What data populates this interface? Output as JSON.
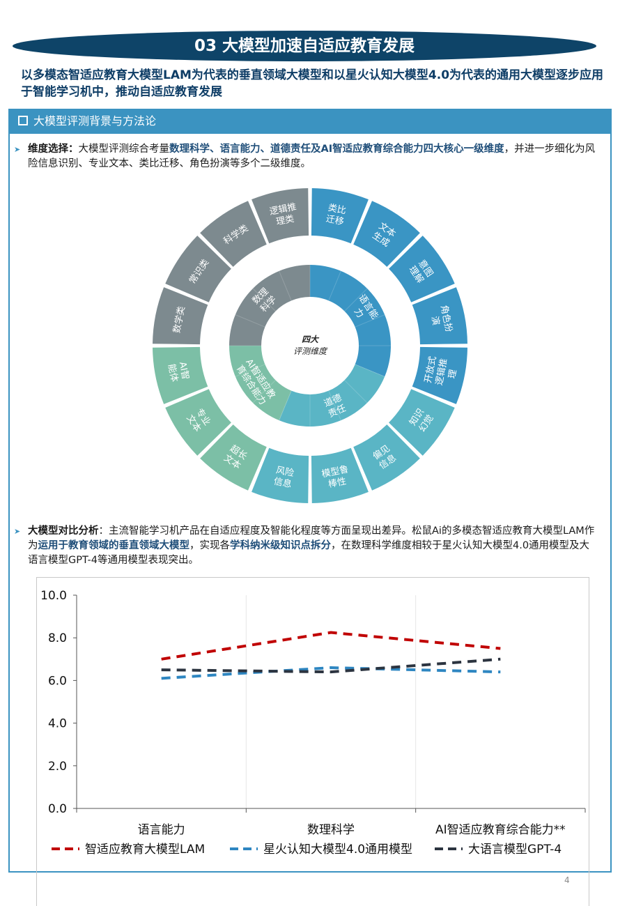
{
  "header": {
    "title": "03 大模型加速自适应教育发展",
    "intro": "以多模态智适应教育大模型LAM为代表的垂直领域大模型和以星火认知大模型4.0为代表的通用大模型逐步应用于智能学习机中，推动自适应教育发展"
  },
  "panel": {
    "title": "大模型评测背景与方法论"
  },
  "bullet1": {
    "lead": "维度选择：",
    "t1": "大模型评测综合考量",
    "h1": "数理科学、语言能力、道德责任及AI智适应教育综合能力四大核心一级维度",
    "t2": "，并进一步细化为风险信息识别、专业文本、类比迁移、角色扮演等多个二级维度。"
  },
  "donut": {
    "center_line1": "四大",
    "center_line2": "评测维度",
    "colors": {
      "blue": "#3a95c4",
      "teal": "#5ab5c5",
      "green": "#7cbfa6",
      "gray": "#7d8a8f"
    },
    "inner": [
      {
        "label": [
          "语言能",
          "力"
        ],
        "color": "blue"
      },
      {
        "label": [
          "道德",
          "责任"
        ],
        "color": "teal"
      },
      {
        "label": [
          "AI智适应教",
          "育综合能力"
        ],
        "color": "green"
      },
      {
        "label": [
          "数理",
          "科学"
        ],
        "color": "gray"
      }
    ],
    "outer": [
      {
        "label": [
          "类比",
          "迁移"
        ],
        "color": "blue"
      },
      {
        "label": [
          "文本",
          "生成"
        ],
        "color": "blue"
      },
      {
        "label": [
          "意图",
          "理解"
        ],
        "color": "blue"
      },
      {
        "label": [
          "角色扮",
          "演"
        ],
        "color": "blue"
      },
      {
        "label": [
          "开放式",
          "逻辑推",
          "理"
        ],
        "color": "blue"
      },
      {
        "label": [
          "知识",
          "幻觉"
        ],
        "color": "teal"
      },
      {
        "label": [
          "偏见",
          "信息"
        ],
        "color": "teal"
      },
      {
        "label": [
          "模型鲁",
          "棒性"
        ],
        "color": "teal"
      },
      {
        "label": [
          "风险",
          "信息"
        ],
        "color": "teal"
      },
      {
        "label": [
          "超长",
          "文本"
        ],
        "color": "green"
      },
      {
        "label": [
          "专业",
          "文本"
        ],
        "color": "green"
      },
      {
        "label": [
          "AI智",
          "能体"
        ],
        "color": "green"
      },
      {
        "label": [
          "数学类"
        ],
        "color": "gray"
      },
      {
        "label": [
          "常识类"
        ],
        "color": "gray"
      },
      {
        "label": [
          "科学类"
        ],
        "color": "gray"
      },
      {
        "label": [
          "逻辑推",
          "理类"
        ],
        "color": "gray"
      }
    ]
  },
  "bullet2": {
    "lead": "大模型对比分析",
    "t1": "：主流智能学习机产品在自适应程度及智能化程度等方面呈现出差异。松鼠Ai的多模态智适应教育大模型LAM作为",
    "h1": "运用于教育领域的垂直领域大模型",
    "t2": "，实现各",
    "h2": "学科纳米级知识点拆分",
    "t3": "，在数理科学维度相较于星火认知大模型4.0通用模型及大语言模型GPT-4等通用模型表现突出。"
  },
  "chart_data": {
    "type": "line",
    "categories": [
      "语言能力",
      "数理科学",
      "AI智适应教育综合能力**"
    ],
    "ylim": [
      0,
      10
    ],
    "yticks": [
      "0.0",
      "2.0",
      "4.0",
      "6.0",
      "8.0",
      "10.0"
    ],
    "series": [
      {
        "name": "智适应教育大模型LAM",
        "values": [
          7.0,
          8.25,
          7.5
        ],
        "color": "#c00000"
      },
      {
        "name": "星火认知大模型4.0通用模型",
        "values": [
          6.1,
          6.6,
          6.4
        ],
        "color": "#2e86c1"
      },
      {
        "name": "大语言模型GPT-4",
        "values": [
          6.5,
          6.4,
          7.0
        ],
        "color": "#2c3440"
      }
    ]
  },
  "footer": {
    "page_number": "4"
  }
}
